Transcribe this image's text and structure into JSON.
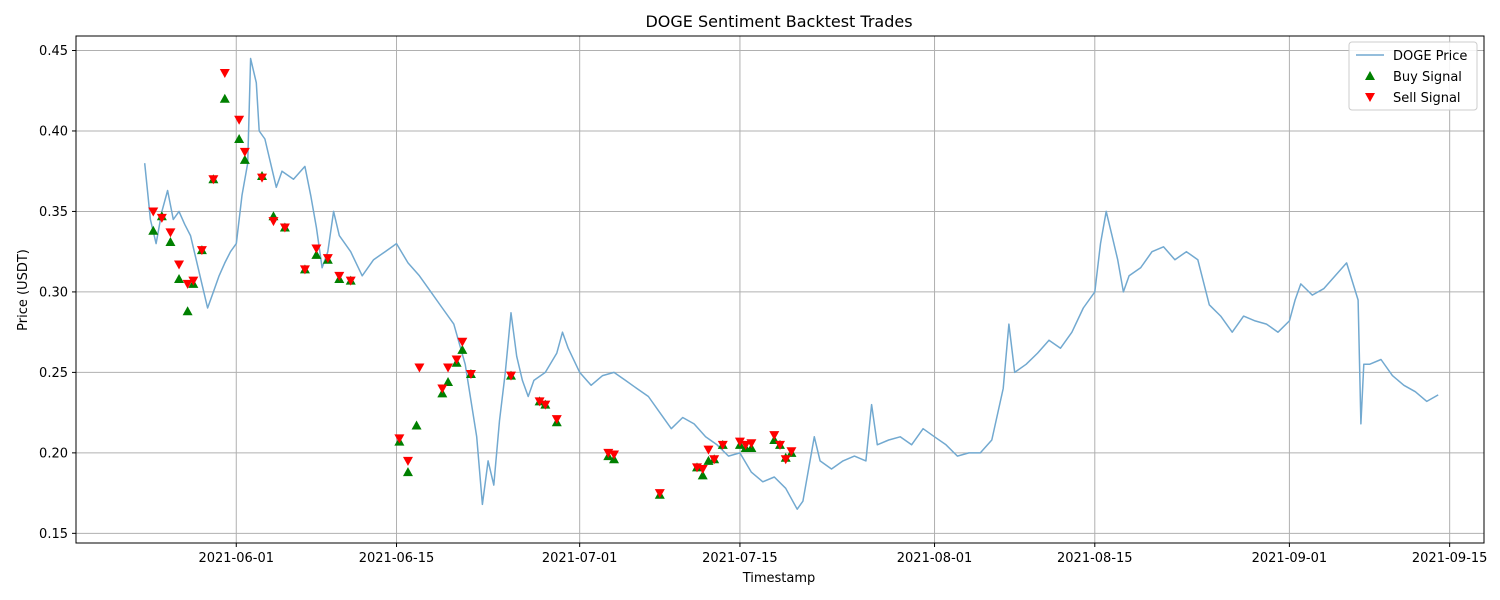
{
  "chart_data": {
    "type": "line",
    "title": "DOGE Sentiment Backtest Trades",
    "xlabel": "Timestamp",
    "ylabel": "Price (USDT)",
    "x_range": [
      "2021-05-18",
      "2021-09-18"
    ],
    "ylim": [
      0.144,
      0.459
    ],
    "x_ticks": [
      "2021-06-01",
      "2021-06-15",
      "2021-07-01",
      "2021-07-15",
      "2021-08-01",
      "2021-08-15",
      "2021-09-01",
      "2021-09-15"
    ],
    "y_ticks": [
      0.15,
      0.2,
      0.25,
      0.3,
      0.35,
      0.4,
      0.45
    ],
    "y_tick_labels": [
      "0.15",
      "0.20",
      "0.25",
      "0.30",
      "0.35",
      "0.40",
      "0.45"
    ],
    "grid": true,
    "legend_position": "top-right",
    "colors": {
      "price": "#72a9d0",
      "buy": "#008000",
      "sell": "#ff0000"
    },
    "series": [
      {
        "name": "DOGE Price",
        "kind": "line",
        "points": [
          [
            "2021-05-24",
            0.38
          ],
          [
            "2021-05-24 12:00",
            0.345
          ],
          [
            "2021-05-25",
            0.33
          ],
          [
            "2021-05-25 12:00",
            0.35
          ],
          [
            "2021-05-26",
            0.363
          ],
          [
            "2021-05-26 12:00",
            0.345
          ],
          [
            "2021-05-27",
            0.35
          ],
          [
            "2021-05-27 12:00",
            0.342
          ],
          [
            "2021-05-28",
            0.335
          ],
          [
            "2021-05-28 12:00",
            0.32
          ],
          [
            "2021-05-29",
            0.305
          ],
          [
            "2021-05-29 12:00",
            0.29
          ],
          [
            "2021-05-30",
            0.3
          ],
          [
            "2021-05-30 12:00",
            0.31
          ],
          [
            "2021-05-31",
            0.318
          ],
          [
            "2021-05-31 12:00",
            0.325
          ],
          [
            "2021-06-01",
            0.33
          ],
          [
            "2021-06-01 12:00",
            0.36
          ],
          [
            "2021-06-02",
            0.38
          ],
          [
            "2021-06-02 06:00",
            0.445
          ],
          [
            "2021-06-02 18:00",
            0.43
          ],
          [
            "2021-06-03",
            0.4
          ],
          [
            "2021-06-03 12:00",
            0.395
          ],
          [
            "2021-06-04",
            0.38
          ],
          [
            "2021-06-04 12:00",
            0.365
          ],
          [
            "2021-06-05",
            0.375
          ],
          [
            "2021-06-06",
            0.37
          ],
          [
            "2021-06-07",
            0.378
          ],
          [
            "2021-06-07 12:00",
            0.36
          ],
          [
            "2021-06-08",
            0.34
          ],
          [
            "2021-06-08 12:00",
            0.315
          ],
          [
            "2021-06-09",
            0.325
          ],
          [
            "2021-06-09 12:00",
            0.35
          ],
          [
            "2021-06-10",
            0.335
          ],
          [
            "2021-06-11",
            0.325
          ],
          [
            "2021-06-12",
            0.31
          ],
          [
            "2021-06-13",
            0.32
          ],
          [
            "2021-06-14",
            0.325
          ],
          [
            "2021-06-15",
            0.33
          ],
          [
            "2021-06-16",
            0.318
          ],
          [
            "2021-06-17",
            0.31
          ],
          [
            "2021-06-18",
            0.3
          ],
          [
            "2021-06-19",
            0.29
          ],
          [
            "2021-06-20",
            0.28
          ],
          [
            "2021-06-21",
            0.255
          ],
          [
            "2021-06-22",
            0.21
          ],
          [
            "2021-06-22 12:00",
            0.168
          ],
          [
            "2021-06-23",
            0.195
          ],
          [
            "2021-06-23 12:00",
            0.18
          ],
          [
            "2021-06-24",
            0.22
          ],
          [
            "2021-06-24 12:00",
            0.25
          ],
          [
            "2021-06-25",
            0.287
          ],
          [
            "2021-06-25 12:00",
            0.26
          ],
          [
            "2021-06-26",
            0.245
          ],
          [
            "2021-06-26 12:00",
            0.235
          ],
          [
            "2021-06-27",
            0.245
          ],
          [
            "2021-06-28",
            0.25
          ],
          [
            "2021-06-29",
            0.262
          ],
          [
            "2021-06-29 12:00",
            0.275
          ],
          [
            "2021-06-30",
            0.265
          ],
          [
            "2021-07-01",
            0.25
          ],
          [
            "2021-07-02",
            0.242
          ],
          [
            "2021-07-03",
            0.248
          ],
          [
            "2021-07-04",
            0.25
          ],
          [
            "2021-07-05",
            0.245
          ],
          [
            "2021-07-06",
            0.24
          ],
          [
            "2021-07-07",
            0.235
          ],
          [
            "2021-07-08",
            0.225
          ],
          [
            "2021-07-09",
            0.215
          ],
          [
            "2021-07-10",
            0.222
          ],
          [
            "2021-07-11",
            0.218
          ],
          [
            "2021-07-12",
            0.21
          ],
          [
            "2021-07-13",
            0.205
          ],
          [
            "2021-07-14",
            0.198
          ],
          [
            "2021-07-15",
            0.2
          ],
          [
            "2021-07-16",
            0.188
          ],
          [
            "2021-07-17",
            0.182
          ],
          [
            "2021-07-18",
            0.185
          ],
          [
            "2021-07-19",
            0.178
          ],
          [
            "2021-07-20",
            0.165
          ],
          [
            "2021-07-20 12:00",
            0.17
          ],
          [
            "2021-07-21",
            0.19
          ],
          [
            "2021-07-21 12:00",
            0.21
          ],
          [
            "2021-07-22",
            0.195
          ],
          [
            "2021-07-23",
            0.19
          ],
          [
            "2021-07-24",
            0.195
          ],
          [
            "2021-07-25",
            0.198
          ],
          [
            "2021-07-26",
            0.195
          ],
          [
            "2021-07-26 12:00",
            0.23
          ],
          [
            "2021-07-27",
            0.205
          ],
          [
            "2021-07-28",
            0.208
          ],
          [
            "2021-07-29",
            0.21
          ],
          [
            "2021-07-30",
            0.205
          ],
          [
            "2021-07-31",
            0.215
          ],
          [
            "2021-08-01",
            0.21
          ],
          [
            "2021-08-02",
            0.205
          ],
          [
            "2021-08-03",
            0.198
          ],
          [
            "2021-08-04",
            0.2
          ],
          [
            "2021-08-05",
            0.2
          ],
          [
            "2021-08-06",
            0.208
          ],
          [
            "2021-08-07",
            0.24
          ],
          [
            "2021-08-07 12:00",
            0.28
          ],
          [
            "2021-08-08",
            0.25
          ],
          [
            "2021-08-09",
            0.255
          ],
          [
            "2021-08-10",
            0.262
          ],
          [
            "2021-08-11",
            0.27
          ],
          [
            "2021-08-12",
            0.265
          ],
          [
            "2021-08-13",
            0.275
          ],
          [
            "2021-08-14",
            0.29
          ],
          [
            "2021-08-15",
            0.3
          ],
          [
            "2021-08-15 12:00",
            0.33
          ],
          [
            "2021-08-16",
            0.35
          ],
          [
            "2021-08-16 12:00",
            0.335
          ],
          [
            "2021-08-17",
            0.32
          ],
          [
            "2021-08-17 12:00",
            0.3
          ],
          [
            "2021-08-18",
            0.31
          ],
          [
            "2021-08-19",
            0.315
          ],
          [
            "2021-08-20",
            0.325
          ],
          [
            "2021-08-21",
            0.328
          ],
          [
            "2021-08-22",
            0.32
          ],
          [
            "2021-08-23",
            0.325
          ],
          [
            "2021-08-24",
            0.32
          ],
          [
            "2021-08-25",
            0.292
          ],
          [
            "2021-08-26",
            0.285
          ],
          [
            "2021-08-27",
            0.275
          ],
          [
            "2021-08-28",
            0.285
          ],
          [
            "2021-08-29",
            0.282
          ],
          [
            "2021-08-30",
            0.28
          ],
          [
            "2021-08-31",
            0.275
          ],
          [
            "2021-09-01",
            0.282
          ],
          [
            "2021-09-01 12:00",
            0.295
          ],
          [
            "2021-09-02",
            0.305
          ],
          [
            "2021-09-03",
            0.298
          ],
          [
            "2021-09-04",
            0.302
          ],
          [
            "2021-09-05",
            0.31
          ],
          [
            "2021-09-06",
            0.318
          ],
          [
            "2021-09-07",
            0.295
          ],
          [
            "2021-09-07 06:00",
            0.218
          ],
          [
            "2021-09-07 12:00",
            0.255
          ],
          [
            "2021-09-08",
            0.255
          ],
          [
            "2021-09-09",
            0.258
          ],
          [
            "2021-09-10",
            0.248
          ],
          [
            "2021-09-11",
            0.242
          ],
          [
            "2021-09-12",
            0.238
          ],
          [
            "2021-09-13",
            0.232
          ],
          [
            "2021-09-14",
            0.236
          ]
        ]
      },
      {
        "name": "Buy Signal",
        "kind": "marker-up",
        "points": [
          [
            "2021-05-24 18:00",
            0.338
          ],
          [
            "2021-05-25 12:00",
            0.347
          ],
          [
            "2021-05-26 06:00",
            0.331
          ],
          [
            "2021-05-27",
            0.308
          ],
          [
            "2021-05-27 18:00",
            0.288
          ],
          [
            "2021-05-28 06:00",
            0.305
          ],
          [
            "2021-05-29",
            0.326
          ],
          [
            "2021-05-30",
            0.37
          ],
          [
            "2021-05-31",
            0.42
          ],
          [
            "2021-06-01 06:00",
            0.395
          ],
          [
            "2021-06-01 18:00",
            0.382
          ],
          [
            "2021-06-03 06:00",
            0.372
          ],
          [
            "2021-06-04 06:00",
            0.347
          ],
          [
            "2021-06-05 06:00",
            0.34
          ],
          [
            "2021-06-07",
            0.314
          ],
          [
            "2021-06-08",
            0.323
          ],
          [
            "2021-06-09",
            0.32
          ],
          [
            "2021-06-10",
            0.308
          ],
          [
            "2021-06-11",
            0.307
          ],
          [
            "2021-06-15 06:00",
            0.207
          ],
          [
            "2021-06-16",
            0.188
          ],
          [
            "2021-06-16 18:00",
            0.217
          ],
          [
            "2021-06-19",
            0.237
          ],
          [
            "2021-06-19 12:00",
            0.244
          ],
          [
            "2021-06-20 06:00",
            0.256
          ],
          [
            "2021-06-20 18:00",
            0.264
          ],
          [
            "2021-06-21 12:00",
            0.249
          ],
          [
            "2021-06-25",
            0.248
          ],
          [
            "2021-06-27 12:00",
            0.232
          ],
          [
            "2021-06-28",
            0.23
          ],
          [
            "2021-06-29",
            0.219
          ],
          [
            "2021-07-03 12:00",
            0.198
          ],
          [
            "2021-07-04",
            0.196
          ],
          [
            "2021-07-08",
            0.174
          ],
          [
            "2021-07-11 06:00",
            0.191
          ],
          [
            "2021-07-11 18:00",
            0.186
          ],
          [
            "2021-07-12 06:00",
            0.195
          ],
          [
            "2021-07-12 18:00",
            0.196
          ],
          [
            "2021-07-13 12:00",
            0.205
          ],
          [
            "2021-07-15",
            0.205
          ],
          [
            "2021-07-15 12:00",
            0.203
          ],
          [
            "2021-07-16",
            0.203
          ],
          [
            "2021-07-18",
            0.208
          ],
          [
            "2021-07-18 12:00",
            0.205
          ],
          [
            "2021-07-19",
            0.197
          ],
          [
            "2021-07-19 12:00",
            0.2
          ]
        ]
      },
      {
        "name": "Sell Signal",
        "kind": "marker-down",
        "points": [
          [
            "2021-05-24 18:00",
            0.35
          ],
          [
            "2021-05-25 12:00",
            0.346
          ],
          [
            "2021-05-26 06:00",
            0.337
          ],
          [
            "2021-05-27",
            0.317
          ],
          [
            "2021-05-27 18:00",
            0.305
          ],
          [
            "2021-05-28 06:00",
            0.307
          ],
          [
            "2021-05-29",
            0.326
          ],
          [
            "2021-05-30",
            0.37
          ],
          [
            "2021-05-31",
            0.436
          ],
          [
            "2021-06-01 06:00",
            0.407
          ],
          [
            "2021-06-01 18:00",
            0.387
          ],
          [
            "2021-06-03 06:00",
            0.371
          ],
          [
            "2021-06-04 06:00",
            0.344
          ],
          [
            "2021-06-05 06:00",
            0.34
          ],
          [
            "2021-06-07",
            0.314
          ],
          [
            "2021-06-08",
            0.327
          ],
          [
            "2021-06-09",
            0.321
          ],
          [
            "2021-06-10",
            0.31
          ],
          [
            "2021-06-11",
            0.307
          ],
          [
            "2021-06-15 06:00",
            0.209
          ],
          [
            "2021-06-16",
            0.195
          ],
          [
            "2021-06-17",
            0.253
          ],
          [
            "2021-06-19",
            0.24
          ],
          [
            "2021-06-19 12:00",
            0.253
          ],
          [
            "2021-06-20 06:00",
            0.258
          ],
          [
            "2021-06-20 18:00",
            0.269
          ],
          [
            "2021-06-21 12:00",
            0.249
          ],
          [
            "2021-06-25",
            0.248
          ],
          [
            "2021-06-27 12:00",
            0.232
          ],
          [
            "2021-06-28",
            0.23
          ],
          [
            "2021-06-29",
            0.221
          ],
          [
            "2021-07-03 12:00",
            0.2
          ],
          [
            "2021-07-04",
            0.199
          ],
          [
            "2021-07-08",
            0.175
          ],
          [
            "2021-07-11 06:00",
            0.191
          ],
          [
            "2021-07-11 18:00",
            0.19
          ],
          [
            "2021-07-12 06:00",
            0.202
          ],
          [
            "2021-07-12 18:00",
            0.196
          ],
          [
            "2021-07-13 12:00",
            0.205
          ],
          [
            "2021-07-15",
            0.207
          ],
          [
            "2021-07-15 12:00",
            0.205
          ],
          [
            "2021-07-16",
            0.206
          ],
          [
            "2021-07-18",
            0.211
          ],
          [
            "2021-07-18 12:00",
            0.205
          ],
          [
            "2021-07-19",
            0.196
          ],
          [
            "2021-07-19 12:00",
            0.201
          ]
        ]
      }
    ]
  }
}
